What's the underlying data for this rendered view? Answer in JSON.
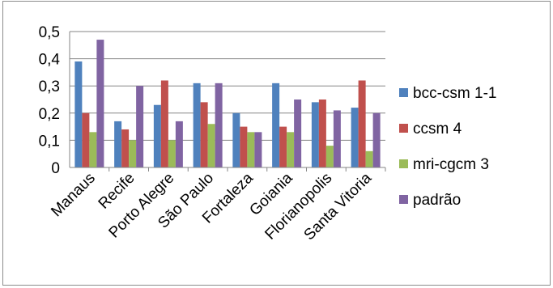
{
  "chart_data": {
    "type": "bar",
    "categories": [
      "Manaus",
      "Recife",
      "Porto Alegre",
      "São Paulo",
      "Fortaleza",
      "Goiania",
      "Florianopolis",
      "Santa Vitoria"
    ],
    "series": [
      {
        "name": "bcc-csm 1-1",
        "color": "#4f81bd",
        "values": [
          0.39,
          0.17,
          0.23,
          0.31,
          0.2,
          0.31,
          0.24,
          0.22
        ]
      },
      {
        "name": "ccsm 4",
        "color": "#c0504d",
        "values": [
          0.2,
          0.14,
          0.32,
          0.24,
          0.15,
          0.15,
          0.25,
          0.32
        ]
      },
      {
        "name": "mri-cgcm 3",
        "color": "#9bbb59",
        "values": [
          0.13,
          0.1,
          0.1,
          0.16,
          0.13,
          0.13,
          0.08,
          0.06
        ]
      },
      {
        "name": "padrão",
        "color": "#8064a2",
        "values": [
          0.47,
          0.3,
          0.17,
          0.31,
          0.13,
          0.25,
          0.21,
          0.2
        ]
      }
    ],
    "ylim": [
      0,
      0.5
    ],
    "yticks": [
      "0",
      "0,1",
      "0,2",
      "0,3",
      "0,4",
      "0,5"
    ],
    "grid": true,
    "legend_position": "right"
  }
}
